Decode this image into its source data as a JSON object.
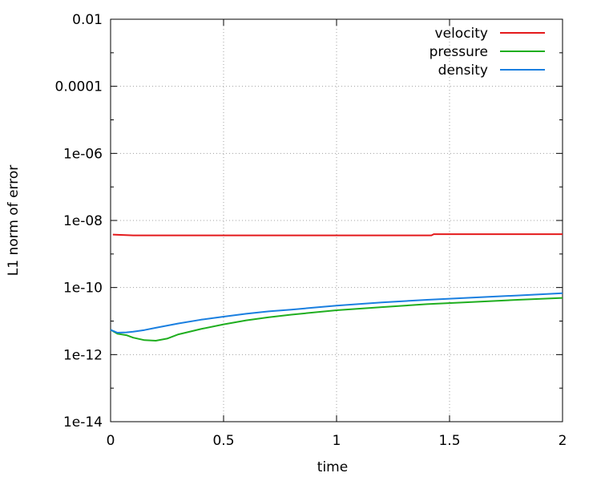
{
  "chart_data": {
    "type": "line",
    "title": "",
    "xlabel": "time",
    "ylabel": "L1 norm of error",
    "xlim": [
      0,
      2
    ],
    "ylim": [
      1e-14,
      0.01
    ],
    "yscale": "log",
    "grid": true,
    "legend_position": "top-right",
    "x_ticks": [
      {
        "value": 0,
        "label": "0"
      },
      {
        "value": 0.5,
        "label": "0.5"
      },
      {
        "value": 1,
        "label": "1"
      },
      {
        "value": 1.5,
        "label": "1.5"
      },
      {
        "value": 2,
        "label": "2"
      }
    ],
    "y_ticks": [
      {
        "value": 1e-14,
        "label": "1e-14"
      },
      {
        "value": 1e-12,
        "label": "1e-12"
      },
      {
        "value": 1e-10,
        "label": "1e-10"
      },
      {
        "value": 1e-08,
        "label": "1e-08"
      },
      {
        "value": 1e-06,
        "label": "1e-06"
      },
      {
        "value": 0.0001,
        "label": "0.0001"
      },
      {
        "value": 0.01,
        "label": "0.01"
      }
    ],
    "series": [
      {
        "name": "velocity",
        "color": "#e41a1c",
        "x": [
          0.01,
          0.1,
          0.5,
          1.0,
          1.42,
          1.43,
          1.6,
          2.0
        ],
        "y": [
          3.8e-09,
          3.6e-09,
          3.6e-09,
          3.6e-09,
          3.6e-09,
          3.9e-09,
          3.9e-09,
          3.9e-09
        ]
      },
      {
        "name": "pressure",
        "color": "#1fae1f",
        "x": [
          0.0,
          0.03,
          0.07,
          0.1,
          0.15,
          0.2,
          0.25,
          0.3,
          0.4,
          0.5,
          0.6,
          0.7,
          0.8,
          1.0,
          1.2,
          1.4,
          1.6,
          1.8,
          2.0
        ],
        "y": [
          5.5e-12,
          4.2e-12,
          3.8e-12,
          3.2e-12,
          2.7e-12,
          2.6e-12,
          3e-12,
          4e-12,
          5.8e-12,
          8e-12,
          1.05e-11,
          1.3e-11,
          1.55e-11,
          2.1e-11,
          2.6e-11,
          3.2e-11,
          3.7e-11,
          4.3e-11,
          4.9e-11
        ]
      },
      {
        "name": "density",
        "color": "#1a7fe0",
        "x": [
          0.0,
          0.03,
          0.07,
          0.1,
          0.15,
          0.2,
          0.3,
          0.4,
          0.5,
          0.6,
          0.7,
          0.8,
          1.0,
          1.2,
          1.4,
          1.6,
          1.8,
          2.0
        ],
        "y": [
          5.5e-12,
          4.5e-12,
          4.6e-12,
          4.8e-12,
          5.4e-12,
          6.3e-12,
          8.5e-12,
          1.1e-11,
          1.35e-11,
          1.65e-11,
          1.95e-11,
          2.2e-11,
          2.9e-11,
          3.6e-11,
          4.3e-11,
          5e-11,
          5.8e-11,
          6.8e-11
        ]
      }
    ]
  }
}
